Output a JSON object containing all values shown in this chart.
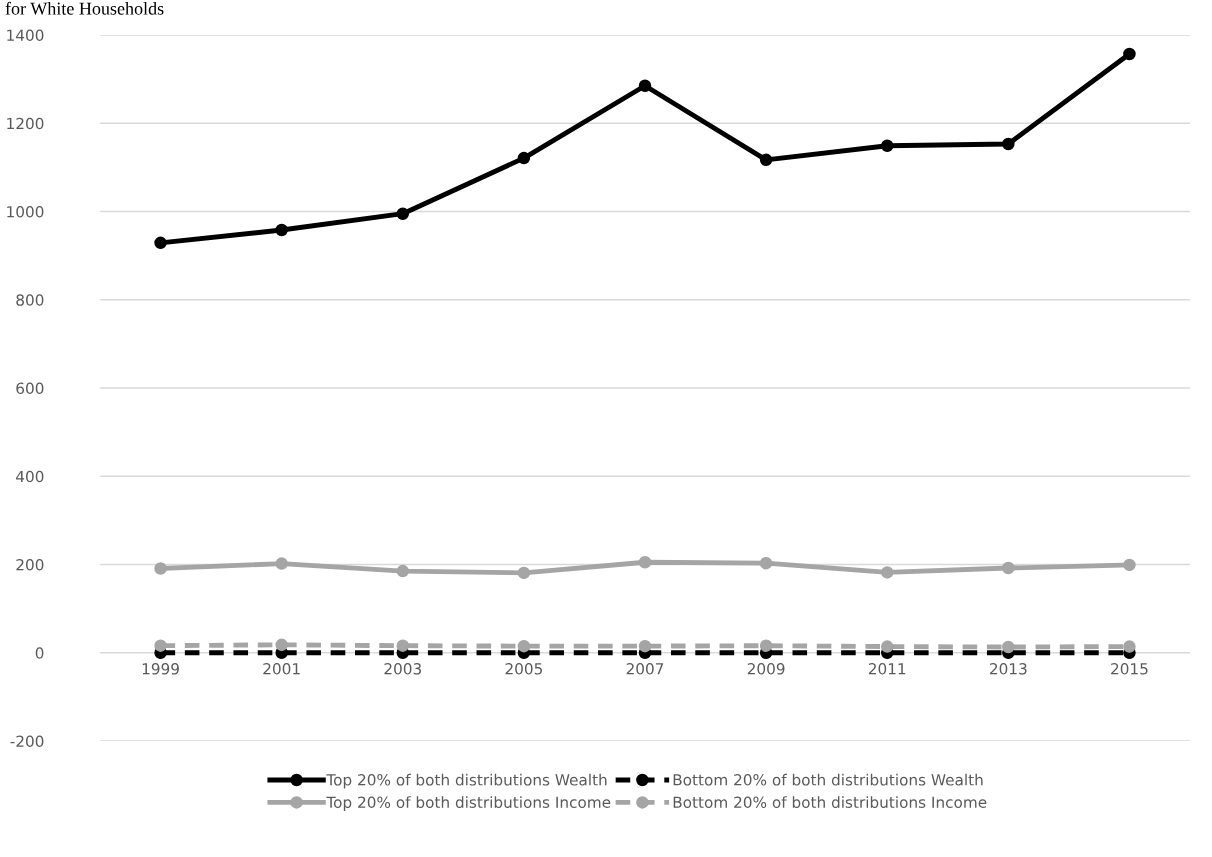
{
  "chart_data": {
    "type": "line",
    "title": "for White Households",
    "categories": [
      "1999",
      "2001",
      "2003",
      "2005",
      "2007",
      "2009",
      "2011",
      "2013",
      "2015"
    ],
    "series": [
      {
        "name": "Top 20% of both distributions Wealth",
        "color": "#000000",
        "line_style": "solid",
        "values": [
          929,
          958,
          995,
          1121,
          1285,
          1117,
          1149,
          1153,
          1357
        ]
      },
      {
        "name": "Top 20% of both distributions Income",
        "color": "#a5a5a5",
        "line_style": "solid",
        "values": [
          191,
          202,
          185,
          181,
          205,
          203,
          182,
          192,
          199
        ]
      },
      {
        "name": "Bottom 20% of both distributions Wealth",
        "color": "#000000",
        "line_style": "dashed",
        "values": [
          0,
          0,
          0,
          0,
          0,
          0,
          0,
          0,
          0
        ]
      },
      {
        "name": "Bottom 20% of both distributions Income",
        "color": "#a5a5a5",
        "line_style": "dashed",
        "values": [
          16,
          18,
          16,
          15,
          15,
          16,
          14,
          13,
          14
        ]
      }
    ],
    "ylim": [
      -200,
      1400
    ],
    "yticks": [
      -200,
      0,
      200,
      400,
      600,
      800,
      1000,
      1200,
      1400
    ],
    "grid": "y",
    "legend": "bottom",
    "marker": "circle"
  }
}
